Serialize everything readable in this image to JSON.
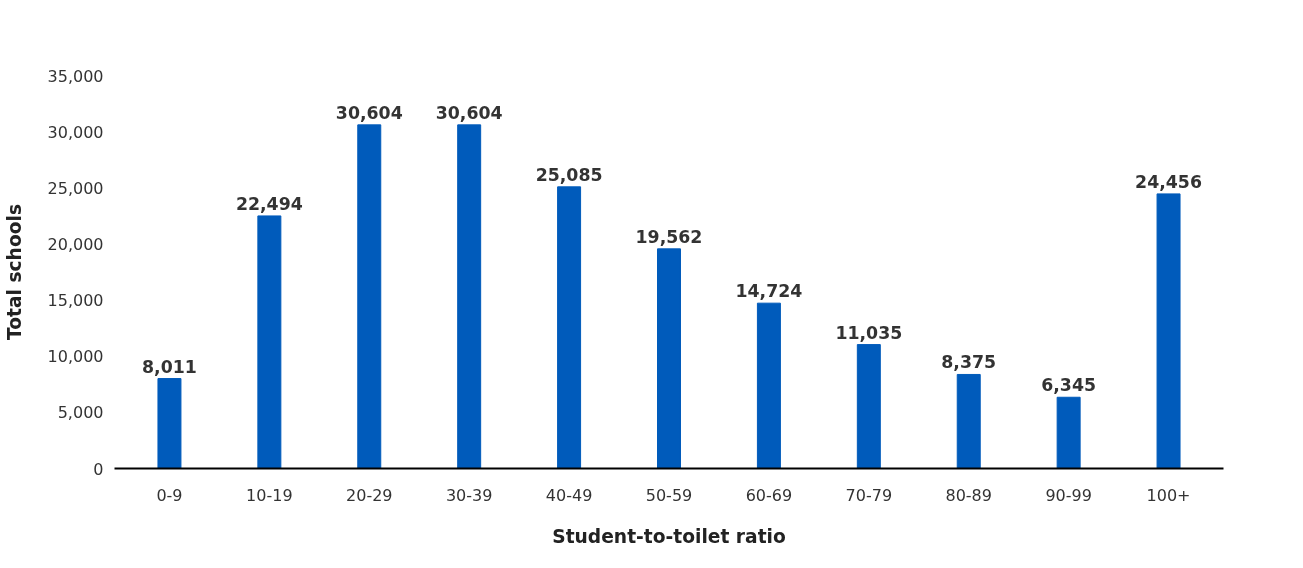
{
  "chart_data": {
    "type": "bar",
    "xlabel": "Student-to-toilet ratio",
    "ylabel": "Total schools",
    "categories": [
      "0-9",
      "10-19",
      "20-29",
      "30-39",
      "40-49",
      "50-59",
      "60-69",
      "70-79",
      "80-89",
      "90-99",
      "100+"
    ],
    "values": [
      8011,
      22494,
      30604,
      30604,
      25085,
      19562,
      14724,
      11035,
      8375,
      6345,
      24456
    ],
    "color": "#005bbb",
    "ylim": [
      0,
      35000
    ],
    "yticks": [
      {
        "value": 0,
        "label": "0"
      },
      {
        "value": 5000,
        "label": "5,000"
      },
      {
        "value": 10000,
        "label": "10,000"
      },
      {
        "value": 15000,
        "label": "15,000"
      },
      {
        "value": 20000,
        "label": "20,000"
      },
      {
        "value": 25000,
        "label": "25,000"
      },
      {
        "value": 30000,
        "label": "30,000"
      },
      {
        "value": 35000,
        "label": "35,000"
      }
    ],
    "value_labels": [
      "8,011",
      "22,494",
      "30,604",
      "30,604",
      "25,085",
      "19,562",
      "14,724",
      "11,035",
      "8,375",
      "6,345",
      "24,456"
    ],
    "grid": false
  }
}
